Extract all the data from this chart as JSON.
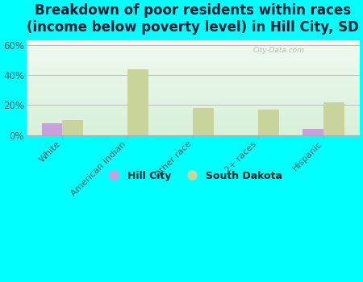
{
  "title": "Breakdown of poor residents within races\n(income below poverty level) in Hill City, SD",
  "categories": [
    "White",
    "American Indian",
    "Other race",
    "2+ races",
    "Hispanic"
  ],
  "hill_city_values": [
    8,
    0,
    0,
    0,
    4
  ],
  "south_dakota_values": [
    10,
    44,
    18,
    17,
    22
  ],
  "hill_city_color": "#c9a0dc",
  "south_dakota_color": "#c8d49a",
  "bg_color_top": "#f0faf0",
  "bg_color_bottom": "#d8f0d8",
  "ylim": [
    0,
    63
  ],
  "yticks": [
    0,
    20,
    40,
    60
  ],
  "ytick_labels": [
    "0%",
    "20%",
    "40%",
    "60%"
  ],
  "title_fontsize": 12,
  "bar_width": 0.32,
  "outer_bg": "#00ffff",
  "watermark_text": "City-Data.com",
  "legend_hill_city": "Hill City",
  "legend_south_dakota": "South Dakota"
}
